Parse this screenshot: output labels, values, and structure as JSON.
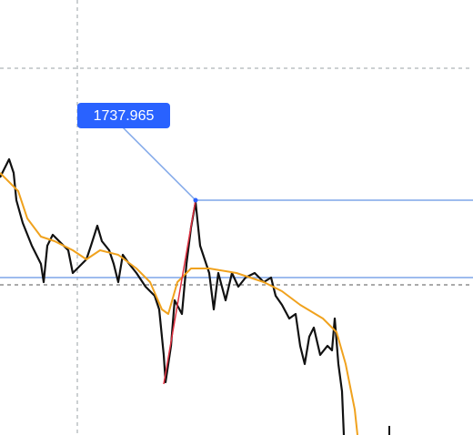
{
  "price_label": "1737.965"
}
